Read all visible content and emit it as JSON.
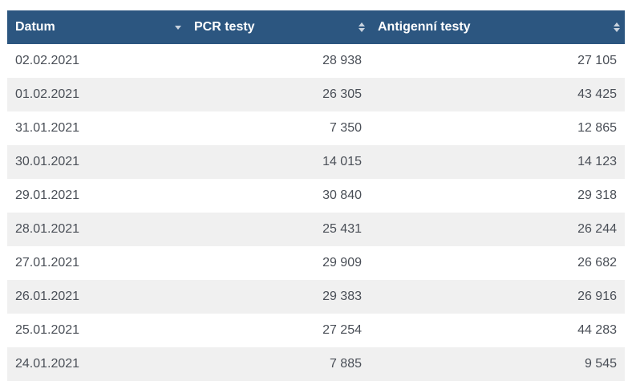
{
  "table": {
    "headers": {
      "date": "Datum",
      "pcr": "PCR testy",
      "antigen": "Antigenní testy"
    },
    "sort": {
      "date": "descending",
      "pcr": "none",
      "antigen": "none"
    },
    "rows": [
      {
        "date": "02.02.2021",
        "pcr": "28 938",
        "antigen": "27 105"
      },
      {
        "date": "01.02.2021",
        "pcr": "26 305",
        "antigen": "43 425"
      },
      {
        "date": "31.01.2021",
        "pcr": "7 350",
        "antigen": "12 865"
      },
      {
        "date": "30.01.2021",
        "pcr": "14 015",
        "antigen": "14 123"
      },
      {
        "date": "29.01.2021",
        "pcr": "30 840",
        "antigen": "29 318"
      },
      {
        "date": "28.01.2021",
        "pcr": "25 431",
        "antigen": "26 244"
      },
      {
        "date": "27.01.2021",
        "pcr": "29 909",
        "antigen": "26 682"
      },
      {
        "date": "26.01.2021",
        "pcr": "29 383",
        "antigen": "26 916"
      },
      {
        "date": "25.01.2021",
        "pcr": "27 254",
        "antigen": "44 283"
      },
      {
        "date": "24.01.2021",
        "pcr": "7 885",
        "antigen": "9 545"
      }
    ]
  },
  "colors": {
    "header_bg": "#2c5680",
    "header_text": "#ffffff",
    "row_alt": "#f0f0f0",
    "row_base": "#ffffff",
    "sort_icon": "#c9d3de"
  }
}
